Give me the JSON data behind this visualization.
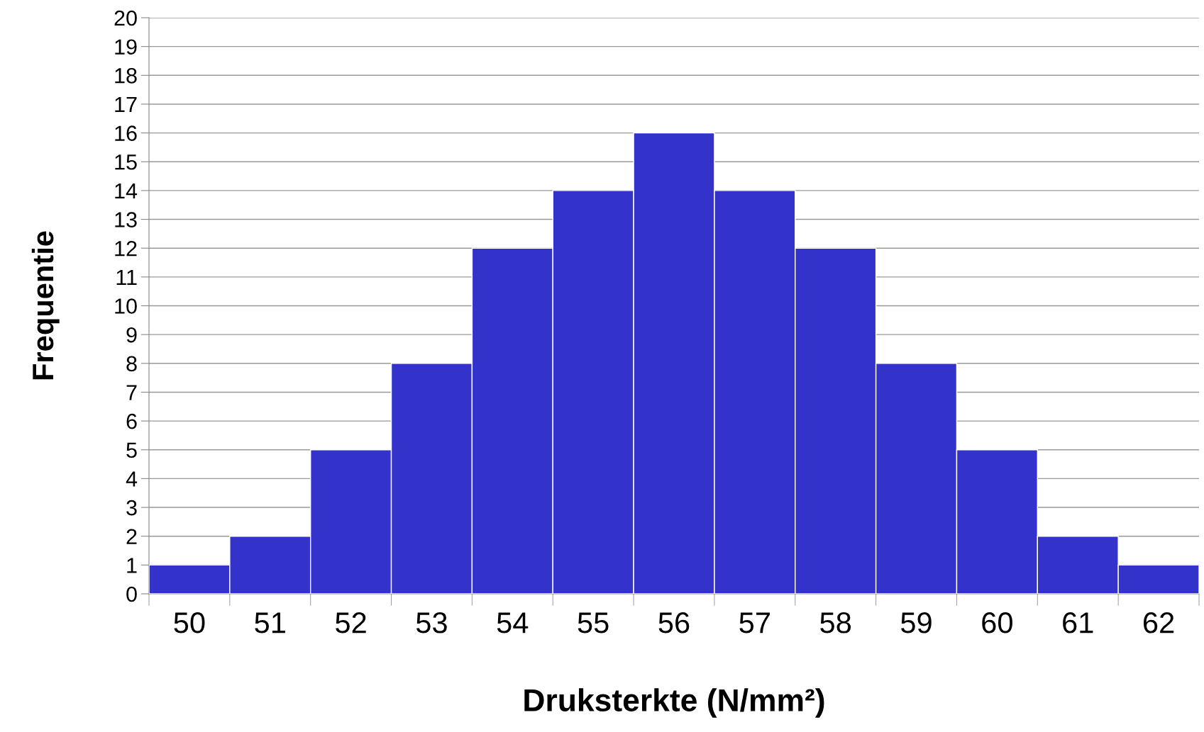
{
  "chart_data": {
    "type": "bar",
    "xlabel": "Druksterkte (N/mm²)",
    "ylabel": "Frequentie",
    "categories": [
      "50",
      "51",
      "52",
      "53",
      "54",
      "55",
      "56",
      "57",
      "58",
      "59",
      "60",
      "61",
      "62"
    ],
    "values": [
      1,
      2,
      5,
      8,
      12,
      14,
      16,
      14,
      12,
      8,
      5,
      2,
      1
    ],
    "color": "#3333cc",
    "ylim": [
      0,
      20
    ],
    "yticks": [
      0,
      1,
      2,
      3,
      4,
      5,
      6,
      7,
      8,
      9,
      10,
      11,
      12,
      13,
      14,
      15,
      16,
      17,
      18,
      19,
      20
    ],
    "grid": "y",
    "legend": false
  }
}
